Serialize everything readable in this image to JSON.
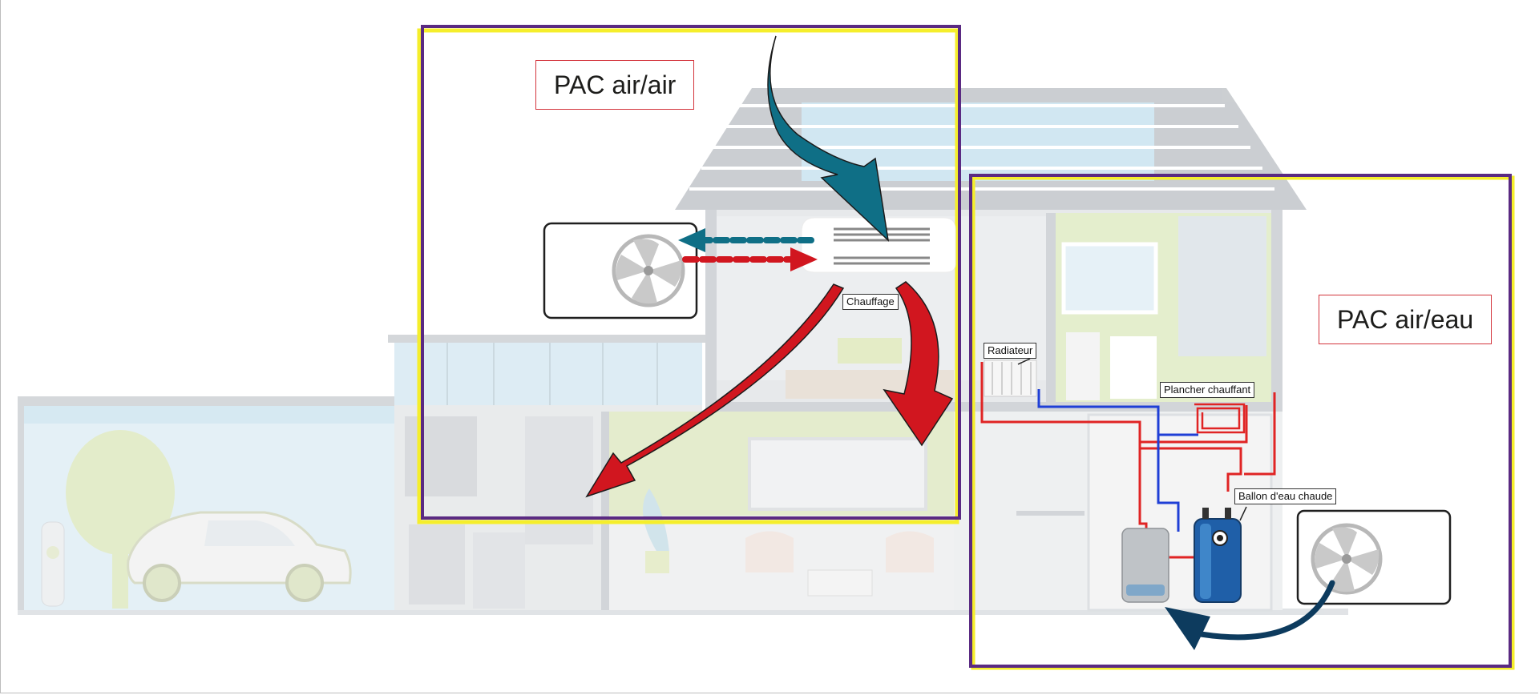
{
  "labels": {
    "pac_air_air": "PAC air/air",
    "pac_air_eau": "PAC air/eau",
    "chauffage": "Chauffage",
    "radiateur": "Radiateur",
    "plancher_chauffant": "Plancher chauffant",
    "ballon_eau_chaude": "Ballon d'eau chaude"
  },
  "colors": {
    "frame_yellow": "#f5ee2b",
    "frame_purple": "#5a2a82",
    "arrow_teal": "#0f6f86",
    "arrow_red": "#d1161f",
    "pipe_red": "#e02424",
    "pipe_blue": "#1f3fd6",
    "tank_blue": "#1f5fa8",
    "house_grey": "#c9ccd0",
    "accent_green": "#dfe8b8",
    "glass_blue": "#d8ecf4"
  }
}
